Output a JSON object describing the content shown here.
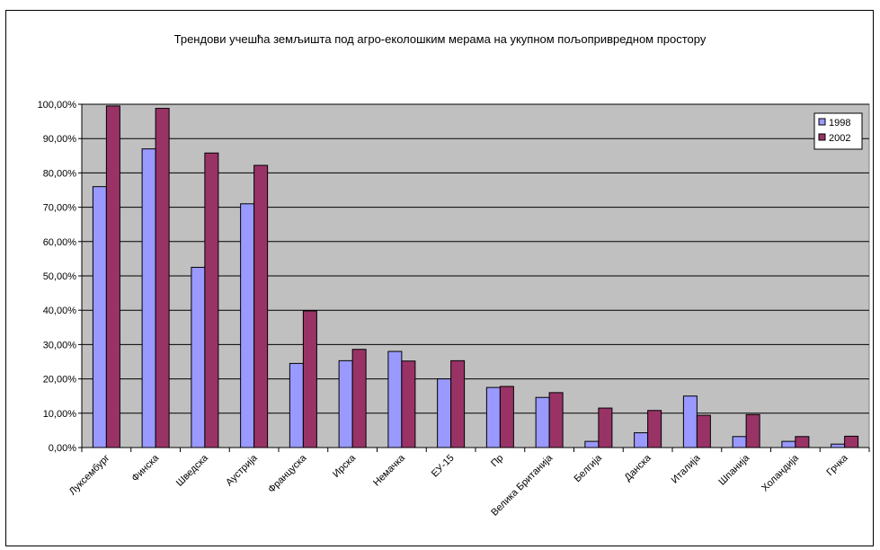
{
  "chart_data": {
    "type": "bar",
    "title": "Трендови учешћа земљишта под агро-еколошким мерама на укупном пољопривредном простору",
    "xlabel": "",
    "ylabel": "",
    "ylim": [
      0,
      100
    ],
    "y_tick_labels": [
      "0,00%",
      "10,00%",
      "20,00%",
      "30,00%",
      "40,00%",
      "50,00%",
      "60,00%",
      "70,00%",
      "80,00%",
      "90,00%",
      "100,00%"
    ],
    "y_ticks": [
      0,
      10,
      20,
      30,
      40,
      50,
      60,
      70,
      80,
      90,
      100
    ],
    "grid": true,
    "legend_position": "top-right",
    "categories": [
      "Луксембург",
      "Финска",
      "Шведска",
      "Аустрија",
      "Француска",
      "Ирска",
      "Немачка",
      "ЕУ-15",
      "Пр",
      "Велика Британија",
      "Белгија",
      "Данска",
      "Италија",
      "Шпанија",
      "Холандија",
      "Грчка"
    ],
    "series": [
      {
        "name": "1998",
        "color": "#9999ff",
        "values": [
          76,
          87,
          52.5,
          71,
          24.5,
          25.3,
          28,
          20,
          17.5,
          14.6,
          1.8,
          4.3,
          15,
          3.2,
          1.8,
          1
        ]
      },
      {
        "name": "2002",
        "color": "#993366",
        "values": [
          99.5,
          98.8,
          85.8,
          82.2,
          39.8,
          28.6,
          25.2,
          25.3,
          17.8,
          16,
          11.5,
          10.8,
          9.4,
          9.6,
          3.2,
          3.3
        ]
      }
    ]
  }
}
